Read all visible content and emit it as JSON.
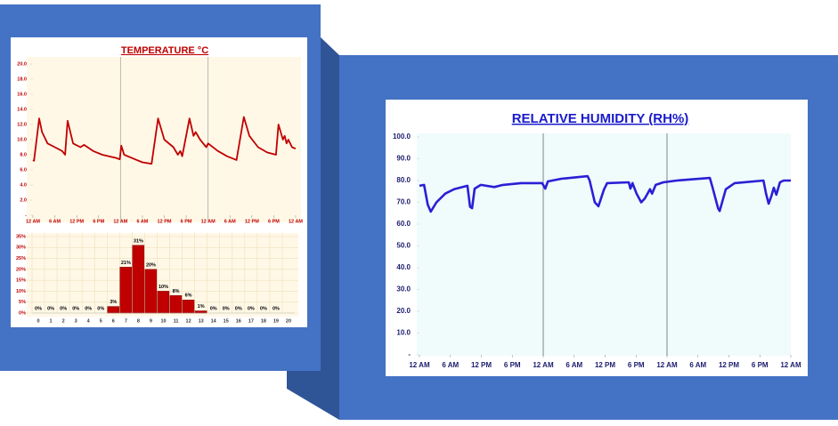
{
  "chart_data": [
    {
      "type": "line",
      "title": "TEMPERATURE °C",
      "color": "#c00000",
      "x": [
        0,
        0.3,
        1.7,
        2.5,
        4,
        6,
        8,
        8.8,
        9.5,
        11,
        13,
        14,
        16.5,
        19,
        22.6,
        23.8,
        24.2,
        25,
        27.5,
        30,
        32.5,
        34.3,
        36,
        38.5,
        39.7,
        40.4,
        40.9,
        42.9,
        44,
        44.6,
        45.8,
        47.5,
        48,
        50.7,
        53.2,
        55.8,
        57.8,
        59.3,
        61.7,
        64.2,
        66.6,
        67.3,
        68.5,
        69,
        69.5,
        70,
        71,
        72
      ],
      "values": [
        7.3,
        7.2,
        12.8,
        11,
        9.5,
        9,
        8.5,
        8.0,
        12.5,
        9.5,
        9,
        9.3,
        8.5,
        8,
        7.6,
        7.4,
        9.2,
        8,
        7.5,
        7,
        6.8,
        12.8,
        10,
        9,
        8,
        8.5,
        7.8,
        12.8,
        10.5,
        11,
        10,
        9,
        9.5,
        8.5,
        7.8,
        7.3,
        13,
        10.5,
        9,
        8.3,
        8,
        12,
        10,
        10.5,
        9.5,
        10,
        9,
        8.8
      ],
      "xlim": [
        0,
        72
      ],
      "xticks": [
        {
          "value": 0,
          "label": "12 AM"
        },
        {
          "value": 6,
          "label": "6 AM"
        },
        {
          "value": 12,
          "label": "12 PM"
        },
        {
          "value": 18,
          "label": "6 PM"
        },
        {
          "value": 24,
          "label": "12 AM"
        },
        {
          "value": 30,
          "label": "6 AM"
        },
        {
          "value": 36,
          "label": "12 PM"
        },
        {
          "value": 42,
          "label": "6 PM"
        },
        {
          "value": 48,
          "label": "12 AM"
        },
        {
          "value": 54,
          "label": "6 AM"
        },
        {
          "value": 60,
          "label": "12 PM"
        },
        {
          "value": 66,
          "label": "6 PM"
        },
        {
          "value": 72,
          "label": "12 AM"
        }
      ],
      "day_lines": [
        24,
        48
      ],
      "ylim": [
        0,
        20
      ],
      "yticks": [
        {
          "value": 0,
          "label": "-"
        },
        {
          "value": 2,
          "label": "2.0"
        },
        {
          "value": 4,
          "label": "4.0"
        },
        {
          "value": 6,
          "label": "6.0"
        },
        {
          "value": 8,
          "label": "8.0"
        },
        {
          "value": 10,
          "label": "10.0"
        },
        {
          "value": 12,
          "label": "12.0"
        },
        {
          "value": 14,
          "label": "14.0"
        },
        {
          "value": 16,
          "label": "16.0"
        },
        {
          "value": 18,
          "label": "18.0"
        },
        {
          "value": 20,
          "label": "20.0"
        }
      ]
    },
    {
      "type": "bar",
      "color": "#c00000",
      "grid": true,
      "categories": [
        "0",
        "1",
        "2",
        "3",
        "4",
        "5",
        "6",
        "7",
        "8",
        "9",
        "10",
        "11",
        "12",
        "13",
        "14",
        "15",
        "16",
        "17",
        "18",
        "19",
        "20"
      ],
      "values": [
        0,
        0,
        0,
        0,
        0,
        0,
        3,
        21,
        31,
        20,
        10,
        8,
        6,
        1,
        0,
        0,
        0,
        0,
        0,
        0,
        null
      ],
      "value_labels": [
        "0%",
        "0%",
        "0%",
        "0%",
        "0%",
        "0%",
        "3%",
        "21%",
        "31%",
        "20%",
        "10%",
        "8%",
        "6%",
        "1%",
        "0%",
        "0%",
        "0%",
        "0%",
        "0%",
        "0%",
        null
      ],
      "ylim": [
        0,
        35
      ],
      "yticks": [
        {
          "value": 0,
          "label": "0%"
        },
        {
          "value": 5,
          "label": "5%"
        },
        {
          "value": 10,
          "label": "10%"
        },
        {
          "value": 15,
          "label": "15%"
        },
        {
          "value": 20,
          "label": "20%"
        },
        {
          "value": 25,
          "label": "25%"
        },
        {
          "value": 30,
          "label": "30%"
        },
        {
          "value": 35,
          "label": "35%"
        }
      ]
    },
    {
      "type": "line",
      "title": "RELATIVE HUMIDITY (RH%)",
      "color": "#2a1fd6",
      "x": [
        0,
        0.9,
        1.6,
        2.2,
        3.3,
        5,
        6.7,
        9.3,
        9.8,
        10.2,
        10.7,
        11.9,
        14.5,
        16.2,
        19.7,
        23.8,
        24.4,
        24.9,
        27.5,
        32.6,
        33,
        34,
        34.7,
        35.8,
        36.4,
        40.6,
        40.9,
        41.3,
        42.1,
        43,
        43.7,
        44.7,
        45.1,
        45.8,
        47.3,
        49.9,
        56.3,
        56.8,
        57.9,
        58.2,
        59.4,
        61.1,
        66.7,
        67.2,
        67.7,
        68.2,
        68.7,
        69.2,
        69.9,
        70.6,
        72
      ],
      "values": [
        77.6,
        78,
        69,
        65.7,
        70,
        74,
        76,
        77.6,
        68,
        67.3,
        76.3,
        78,
        77,
        78,
        78.8,
        78.8,
        76.3,
        79.6,
        80.8,
        82,
        80,
        70,
        68.2,
        76,
        78.8,
        79.2,
        76.3,
        78.8,
        74,
        70,
        71.8,
        76,
        74,
        78,
        79.2,
        80,
        81.2,
        77,
        67.3,
        66,
        76,
        78.8,
        80,
        74,
        69.4,
        72.6,
        76.7,
        73.5,
        79.2,
        80,
        80
      ],
      "xlim": [
        0,
        72
      ],
      "xticks": [
        {
          "value": 0,
          "label": "12 AM"
        },
        {
          "value": 6,
          "label": "6 AM"
        },
        {
          "value": 12,
          "label": "12 PM"
        },
        {
          "value": 18,
          "label": "6 PM"
        },
        {
          "value": 24,
          "label": "12 AM"
        },
        {
          "value": 30,
          "label": "6 AM"
        },
        {
          "value": 36,
          "label": "12 PM"
        },
        {
          "value": 42,
          "label": "6 PM"
        },
        {
          "value": 48,
          "label": "12 AM"
        },
        {
          "value": 54,
          "label": "6 AM"
        },
        {
          "value": 60,
          "label": "12 PM"
        },
        {
          "value": 66,
          "label": "6 PM"
        },
        {
          "value": 72,
          "label": "12 AM"
        }
      ],
      "day_lines": [
        24,
        48
      ],
      "ylim": [
        0,
        100
      ],
      "yticks": [
        {
          "value": 0,
          "label": "-"
        },
        {
          "value": 10,
          "label": "10.0"
        },
        {
          "value": 20,
          "label": "20.0"
        },
        {
          "value": 30,
          "label": "30.0"
        },
        {
          "value": 40,
          "label": "40.0"
        },
        {
          "value": 50,
          "label": "50.0"
        },
        {
          "value": 60,
          "label": "60.0"
        },
        {
          "value": 70,
          "label": "70.0"
        },
        {
          "value": 80,
          "label": "80.0"
        },
        {
          "value": 90,
          "label": "90.0"
        },
        {
          "value": 100,
          "label": "100.0"
        }
      ]
    }
  ]
}
